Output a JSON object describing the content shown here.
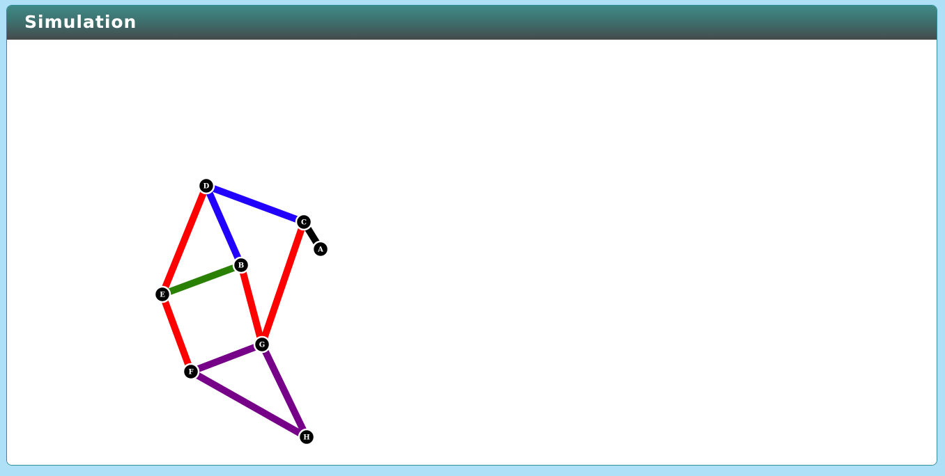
{
  "panel": {
    "title": "Simulation"
  },
  "graph": {
    "nodes": [
      {
        "id": "A",
        "label": "A"
      },
      {
        "id": "B",
        "label": "B"
      },
      {
        "id": "C",
        "label": "C"
      },
      {
        "id": "D",
        "label": "D"
      },
      {
        "id": "E",
        "label": "E"
      },
      {
        "id": "F",
        "label": "F"
      },
      {
        "id": "G",
        "label": "G"
      },
      {
        "id": "H",
        "label": "H"
      }
    ],
    "edges": [
      {
        "from": "D",
        "to": "C",
        "color": "#2200ff"
      },
      {
        "from": "D",
        "to": "B",
        "color": "#2200ff"
      },
      {
        "from": "D",
        "to": "E",
        "color": "#ff0000"
      },
      {
        "from": "C",
        "to": "A",
        "color": "#000000"
      },
      {
        "from": "C",
        "to": "G",
        "color": "#ff0000"
      },
      {
        "from": "B",
        "to": "E",
        "color": "#2a8000"
      },
      {
        "from": "B",
        "to": "G",
        "color": "#ff0000"
      },
      {
        "from": "E",
        "to": "F",
        "color": "#ff0000"
      },
      {
        "from": "F",
        "to": "G",
        "color": "#770088"
      },
      {
        "from": "F",
        "to": "H",
        "color": "#770088"
      },
      {
        "from": "G",
        "to": "H",
        "color": "#770088"
      }
    ],
    "node_fill": "#000000",
    "node_stroke": "#ffffff"
  }
}
